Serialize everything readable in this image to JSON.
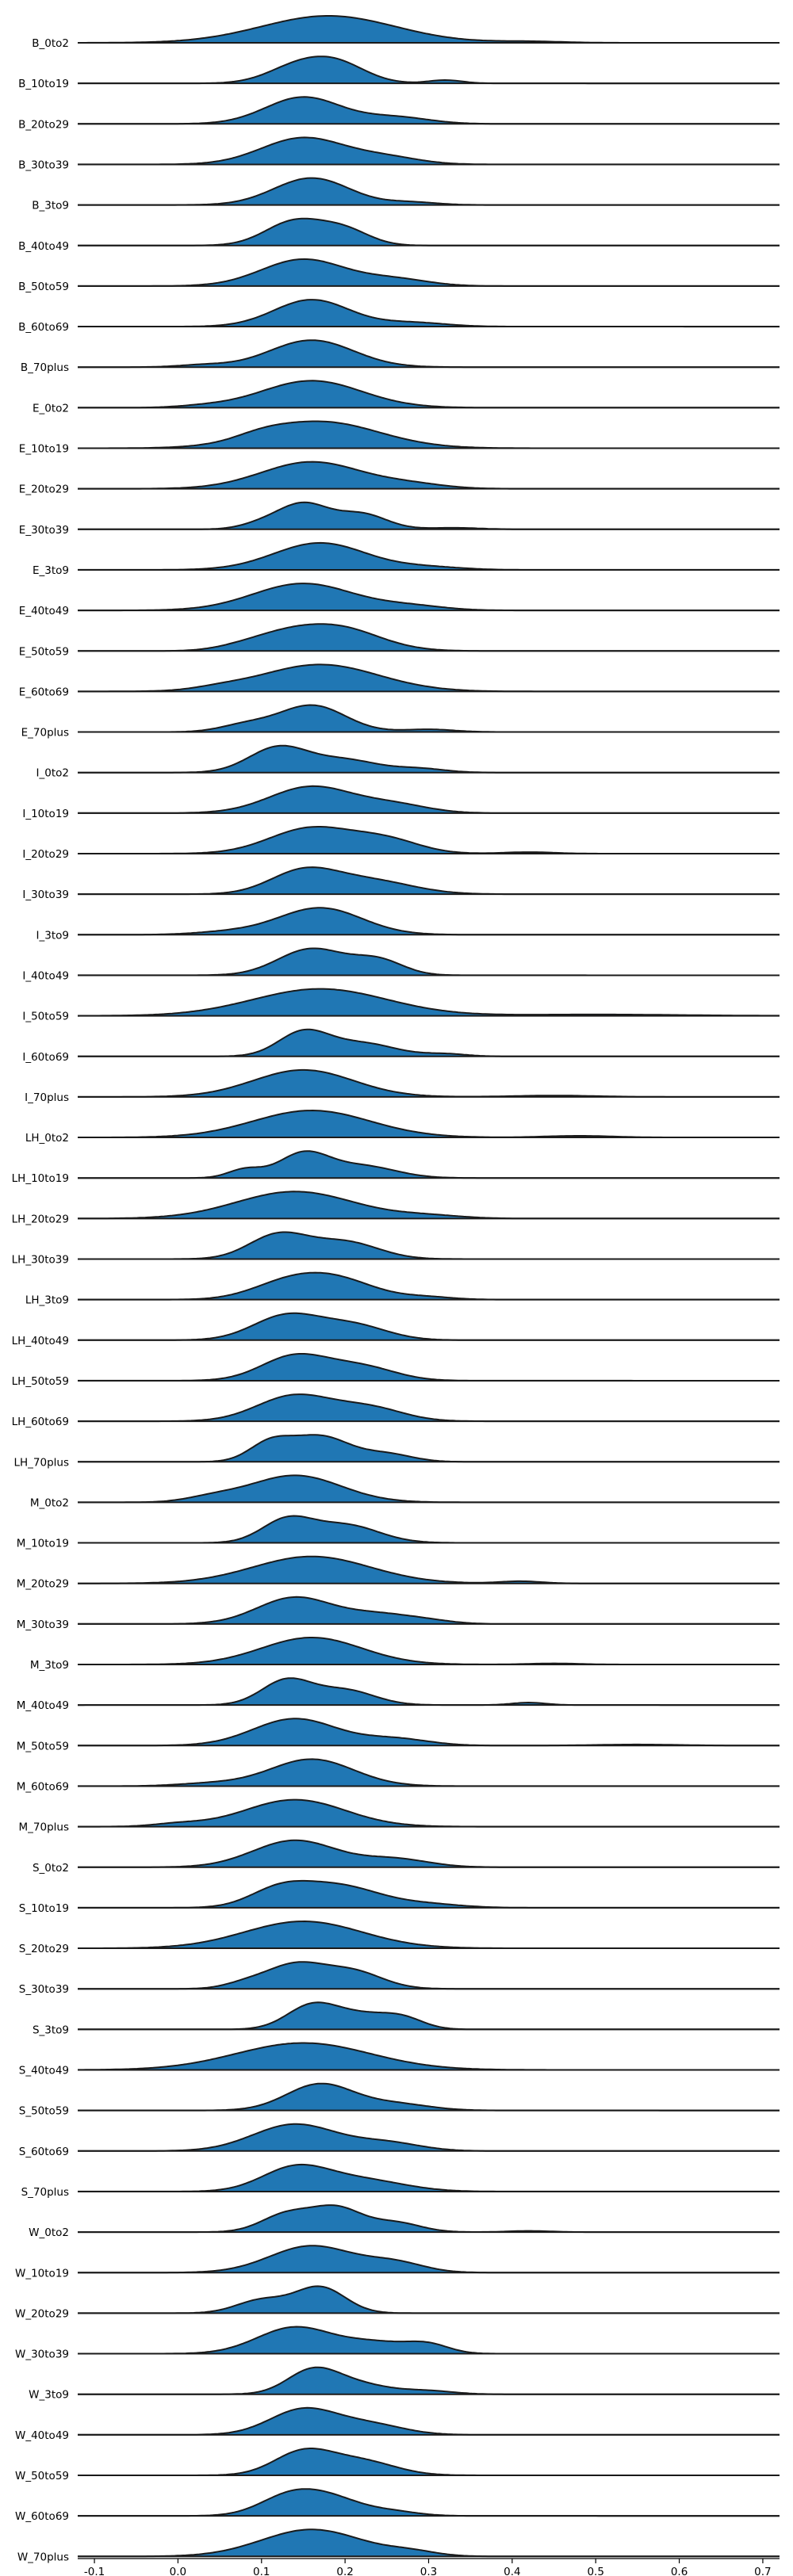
{
  "chart_data": {
    "type": "ridgeline",
    "x_ticks": [
      -0.1,
      0.0,
      0.1,
      0.2,
      0.3,
      0.4,
      0.5,
      0.6,
      0.7
    ],
    "x_tick_labels": [
      "-0.1",
      "0.0",
      "0.1",
      "0.2",
      "0.3",
      "0.4",
      "0.5",
      "0.6",
      "0.7"
    ],
    "xlim": [
      -0.12,
      0.72
    ],
    "fill_color": "#2077b4",
    "line_color": "#1a1a1a",
    "series": [
      {
        "name": "B_0to2",
        "peaks": [
          [
            0.18,
            0.08,
            1.0
          ],
          [
            0.42,
            0.04,
            0.05
          ]
        ]
      },
      {
        "name": "B_10to19",
        "peaks": [
          [
            0.14,
            0.035,
            0.7
          ],
          [
            0.19,
            0.035,
            0.9
          ],
          [
            0.32,
            0.02,
            0.15
          ]
        ]
      },
      {
        "name": "B_20to29",
        "peaks": [
          [
            0.15,
            0.045,
            1.0
          ],
          [
            0.26,
            0.04,
            0.25
          ]
        ]
      },
      {
        "name": "B_30to39",
        "peaks": [
          [
            0.15,
            0.05,
            1.0
          ],
          [
            0.25,
            0.04,
            0.25
          ]
        ]
      },
      {
        "name": "B_3to9",
        "peaks": [
          [
            0.16,
            0.045,
            1.0
          ],
          [
            0.28,
            0.03,
            0.1
          ]
        ]
      },
      {
        "name": "B_40to49",
        "peaks": [
          [
            0.14,
            0.035,
            1.0
          ],
          [
            0.2,
            0.03,
            0.6
          ]
        ]
      },
      {
        "name": "B_50to59",
        "peaks": [
          [
            0.15,
            0.05,
            1.0
          ],
          [
            0.26,
            0.04,
            0.25
          ]
        ]
      },
      {
        "name": "B_60to69",
        "peaks": [
          [
            0.16,
            0.045,
            1.0
          ],
          [
            0.28,
            0.04,
            0.15
          ]
        ]
      },
      {
        "name": "B_70plus",
        "peaks": [
          [
            0.16,
            0.05,
            1.0
          ],
          [
            0.03,
            0.03,
            0.08
          ]
        ]
      },
      {
        "name": "E_0to2",
        "peaks": [
          [
            0.16,
            0.06,
            1.0
          ],
          [
            0.03,
            0.03,
            0.05
          ]
        ]
      },
      {
        "name": "E_10to19",
        "peaks": [
          [
            0.17,
            0.07,
            1.0
          ],
          [
            0.1,
            0.03,
            0.15
          ]
        ]
      },
      {
        "name": "E_20to29",
        "peaks": [
          [
            0.16,
            0.06,
            1.0
          ],
          [
            0.28,
            0.04,
            0.15
          ]
        ]
      },
      {
        "name": "E_30to39",
        "peaks": [
          [
            0.15,
            0.03,
            1.0
          ],
          [
            0.22,
            0.03,
            0.6
          ],
          [
            0.1,
            0.025,
            0.2
          ],
          [
            0.33,
            0.03,
            0.06
          ]
        ]
      },
      {
        "name": "E_3to9",
        "peaks": [
          [
            0.17,
            0.055,
            1.0
          ],
          [
            0.3,
            0.04,
            0.1
          ]
        ]
      },
      {
        "name": "E_40to49",
        "peaks": [
          [
            0.15,
            0.06,
            1.0
          ],
          [
            0.28,
            0.04,
            0.15
          ]
        ]
      },
      {
        "name": "E_50to59",
        "peaks": [
          [
            0.19,
            0.05,
            1.0
          ],
          [
            0.12,
            0.04,
            0.5
          ],
          [
            0.07,
            0.03,
            0.1
          ]
        ]
      },
      {
        "name": "E_60to69",
        "peaks": [
          [
            0.17,
            0.07,
            1.0
          ],
          [
            0.05,
            0.03,
            0.08
          ]
        ]
      },
      {
        "name": "E_70plus",
        "peaks": [
          [
            0.16,
            0.04,
            1.0
          ],
          [
            0.08,
            0.03,
            0.25
          ],
          [
            0.3,
            0.03,
            0.1
          ]
        ]
      },
      {
        "name": "I_0to2",
        "peaks": [
          [
            0.12,
            0.035,
            1.0
          ],
          [
            0.2,
            0.04,
            0.5
          ],
          [
            0.29,
            0.03,
            0.15
          ]
        ]
      },
      {
        "name": "I_10to19",
        "peaks": [
          [
            0.16,
            0.05,
            1.0
          ],
          [
            0.26,
            0.04,
            0.3
          ]
        ]
      },
      {
        "name": "I_20to29",
        "peaks": [
          [
            0.16,
            0.05,
            1.0
          ],
          [
            0.25,
            0.04,
            0.5
          ],
          [
            0.42,
            0.03,
            0.06
          ]
        ]
      },
      {
        "name": "I_30to39",
        "peaks": [
          [
            0.15,
            0.04,
            1.0
          ],
          [
            0.23,
            0.05,
            0.6
          ]
        ]
      },
      {
        "name": "I_3to9",
        "peaks": [
          [
            0.17,
            0.05,
            1.0
          ],
          [
            0.06,
            0.04,
            0.1
          ]
        ]
      },
      {
        "name": "I_40to49",
        "peaks": [
          [
            0.16,
            0.04,
            1.0
          ],
          [
            0.24,
            0.03,
            0.55
          ]
        ]
      },
      {
        "name": "I_50to59",
        "peaks": [
          [
            0.17,
            0.08,
            1.0
          ],
          [
            0.5,
            0.1,
            0.05
          ]
        ]
      },
      {
        "name": "I_60to69",
        "peaks": [
          [
            0.15,
            0.03,
            1.0
          ],
          [
            0.22,
            0.04,
            0.55
          ],
          [
            0.32,
            0.025,
            0.1
          ]
        ]
      },
      {
        "name": "I_70plus",
        "peaks": [
          [
            0.15,
            0.06,
            1.0
          ],
          [
            0.45,
            0.05,
            0.05
          ]
        ]
      },
      {
        "name": "LH_0to2",
        "peaks": [
          [
            0.16,
            0.07,
            1.0
          ],
          [
            0.48,
            0.04,
            0.06
          ]
        ]
      },
      {
        "name": "LH_10to19",
        "peaks": [
          [
            0.15,
            0.03,
            1.0
          ],
          [
            0.08,
            0.02,
            0.35
          ],
          [
            0.22,
            0.04,
            0.5
          ]
        ]
      },
      {
        "name": "LH_20to29",
        "peaks": [
          [
            0.14,
            0.07,
            1.0
          ],
          [
            0.3,
            0.04,
            0.1
          ]
        ]
      },
      {
        "name": "LH_30to39",
        "peaks": [
          [
            0.12,
            0.035,
            1.0
          ],
          [
            0.2,
            0.04,
            0.7
          ]
        ]
      },
      {
        "name": "LH_3to9",
        "peaks": [
          [
            0.18,
            0.05,
            1.0
          ],
          [
            0.12,
            0.04,
            0.4
          ],
          [
            0.3,
            0.03,
            0.1
          ]
        ]
      },
      {
        "name": "LH_40to49",
        "peaks": [
          [
            0.13,
            0.04,
            1.0
          ],
          [
            0.21,
            0.04,
            0.6
          ]
        ]
      },
      {
        "name": "LH_50to59",
        "peaks": [
          [
            0.14,
            0.04,
            1.0
          ],
          [
            0.22,
            0.04,
            0.55
          ]
        ]
      },
      {
        "name": "LH_60to69",
        "peaks": [
          [
            0.14,
            0.045,
            1.0
          ],
          [
            0.23,
            0.04,
            0.5
          ]
        ]
      },
      {
        "name": "LH_70plus",
        "peaks": [
          [
            0.11,
            0.025,
            0.7
          ],
          [
            0.17,
            0.035,
            1.0
          ],
          [
            0.25,
            0.03,
            0.3
          ]
        ]
      },
      {
        "name": "M_0to2",
        "peaks": [
          [
            0.14,
            0.055,
            1.0
          ],
          [
            0.04,
            0.03,
            0.15
          ]
        ]
      },
      {
        "name": "M_10to19",
        "peaks": [
          [
            0.13,
            0.03,
            1.0
          ],
          [
            0.2,
            0.04,
            0.8
          ]
        ]
      },
      {
        "name": "M_20to29",
        "peaks": [
          [
            0.16,
            0.07,
            1.0
          ],
          [
            0.41,
            0.025,
            0.08
          ]
        ]
      },
      {
        "name": "M_30to39",
        "peaks": [
          [
            0.14,
            0.045,
            1.0
          ],
          [
            0.24,
            0.04,
            0.35
          ],
          [
            0.3,
            0.03,
            0.1
          ]
        ]
      },
      {
        "name": "M_3to9",
        "peaks": [
          [
            0.16,
            0.06,
            1.0
          ],
          [
            0.45,
            0.03,
            0.04
          ]
        ]
      },
      {
        "name": "M_40to49",
        "peaks": [
          [
            0.13,
            0.03,
            1.0
          ],
          [
            0.2,
            0.035,
            0.6
          ],
          [
            0.42,
            0.02,
            0.1
          ]
        ]
      },
      {
        "name": "M_50to59",
        "peaks": [
          [
            0.14,
            0.05,
            1.0
          ],
          [
            0.26,
            0.04,
            0.25
          ],
          [
            0.55,
            0.05,
            0.04
          ]
        ]
      },
      {
        "name": "M_60to69",
        "peaks": [
          [
            0.16,
            0.05,
            1.0
          ],
          [
            0.04,
            0.04,
            0.1
          ]
        ]
      },
      {
        "name": "M_70plus",
        "peaks": [
          [
            0.14,
            0.06,
            1.0
          ],
          [
            0.0,
            0.03,
            0.1
          ]
        ]
      },
      {
        "name": "S_0to2",
        "peaks": [
          [
            0.14,
            0.05,
            1.0
          ],
          [
            0.26,
            0.04,
            0.3
          ]
        ]
      },
      {
        "name": "S_10to19",
        "peaks": [
          [
            0.19,
            0.05,
            1.0
          ],
          [
            0.12,
            0.035,
            0.7
          ],
          [
            0.3,
            0.04,
            0.15
          ]
        ]
      },
      {
        "name": "S_20to29",
        "peaks": [
          [
            0.15,
            0.07,
            1.0
          ]
        ]
      },
      {
        "name": "S_30to39",
        "peaks": [
          [
            0.14,
            0.035,
            1.0
          ],
          [
            0.21,
            0.035,
            0.7
          ],
          [
            0.08,
            0.025,
            0.2
          ]
        ]
      },
      {
        "name": "S_3to9",
        "peaks": [
          [
            0.16,
            0.03,
            1.0
          ],
          [
            0.22,
            0.035,
            0.6
          ],
          [
            0.27,
            0.025,
            0.4
          ]
        ]
      },
      {
        "name": "S_40to49",
        "peaks": [
          [
            0.15,
            0.08,
            1.0
          ]
        ]
      },
      {
        "name": "S_50to59",
        "peaks": [
          [
            0.17,
            0.04,
            1.0
          ],
          [
            0.26,
            0.04,
            0.25
          ]
        ]
      },
      {
        "name": "S_60to69",
        "peaks": [
          [
            0.14,
            0.05,
            1.0
          ],
          [
            0.25,
            0.04,
            0.3
          ]
        ]
      },
      {
        "name": "S_70plus",
        "peaks": [
          [
            0.14,
            0.04,
            1.0
          ],
          [
            0.22,
            0.05,
            0.5
          ]
        ]
      },
      {
        "name": "W_0to2",
        "peaks": [
          [
            0.13,
            0.03,
            0.75
          ],
          [
            0.19,
            0.03,
            1.0
          ],
          [
            0.26,
            0.03,
            0.4
          ],
          [
            0.42,
            0.025,
            0.05
          ]
        ]
      },
      {
        "name": "W_10to19",
        "peaks": [
          [
            0.16,
            0.05,
            1.0
          ],
          [
            0.26,
            0.035,
            0.35
          ]
        ]
      },
      {
        "name": "W_20to29",
        "peaks": [
          [
            0.17,
            0.03,
            1.0
          ],
          [
            0.1,
            0.03,
            0.5
          ]
        ]
      },
      {
        "name": "W_30to39",
        "peaks": [
          [
            0.14,
            0.045,
            1.0
          ],
          [
            0.24,
            0.04,
            0.4
          ],
          [
            0.3,
            0.025,
            0.3
          ]
        ]
      },
      {
        "name": "W_3to9",
        "peaks": [
          [
            0.16,
            0.03,
            1.0
          ],
          [
            0.21,
            0.04,
            0.5
          ],
          [
            0.3,
            0.03,
            0.15
          ]
        ]
      },
      {
        "name": "W_40to49",
        "peaks": [
          [
            0.15,
            0.04,
            1.0
          ],
          [
            0.23,
            0.04,
            0.4
          ]
        ]
      },
      {
        "name": "W_50to59",
        "peaks": [
          [
            0.15,
            0.035,
            1.0
          ],
          [
            0.22,
            0.04,
            0.6
          ]
        ]
      },
      {
        "name": "W_60to69",
        "peaks": [
          [
            0.13,
            0.035,
            0.9
          ],
          [
            0.18,
            0.04,
            1.0
          ],
          [
            0.26,
            0.03,
            0.2
          ]
        ]
      },
      {
        "name": "W_70plus",
        "peaks": [
          [
            0.16,
            0.06,
            1.0
          ],
          [
            0.28,
            0.03,
            0.15
          ]
        ]
      }
    ]
  }
}
